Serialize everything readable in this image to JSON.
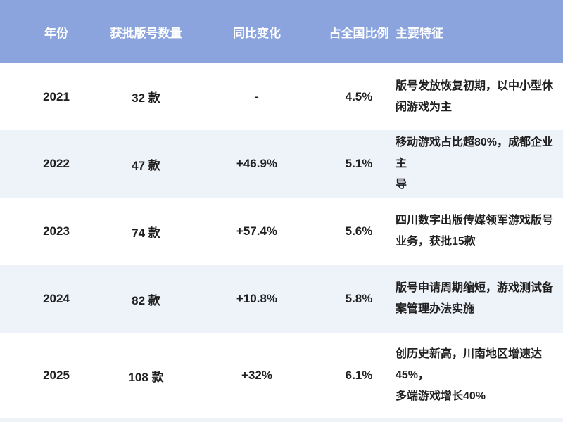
{
  "colors": {
    "header_bg": "#8ba4de",
    "header_fg": "#ffffff",
    "row_white": "#ffffff",
    "row_alt": "#eef2f9",
    "body_fg": "#1f1f1f"
  },
  "table": {
    "columns": {
      "year": "年份",
      "count": "获批版号数量",
      "yoy": "同比变化",
      "share": "占全国比例",
      "features": "主要特征"
    },
    "rows": [
      {
        "year": "2021",
        "count": "32 款",
        "yoy": "-",
        "share": "4.5%",
        "features": "版号发放恢复初期，以中小型休\n闲游戏为主"
      },
      {
        "year": "2022",
        "count": "47 款",
        "yoy": "+46.9%",
        "share": "5.1%",
        "features": "移动游戏占比超80%，成都企业主\n导"
      },
      {
        "year": "2023",
        "count": "74 款",
        "yoy": "+57.4%",
        "share": "5.6%",
        "features": "四川数字出版传媒领军游戏版号\n业务，获批15款"
      },
      {
        "year": "2024",
        "count": "82 款",
        "yoy": "+10.8%",
        "share": "5.8%",
        "features": "版号申请周期缩短，游戏测试备\n案管理办法实施"
      },
      {
        "year": "2025",
        "count": "108 款",
        "yoy": "+32%",
        "share": "6.1%",
        "features": "创历史新高，川南地区增速达45%，\n多端游戏增长40%"
      }
    ]
  }
}
